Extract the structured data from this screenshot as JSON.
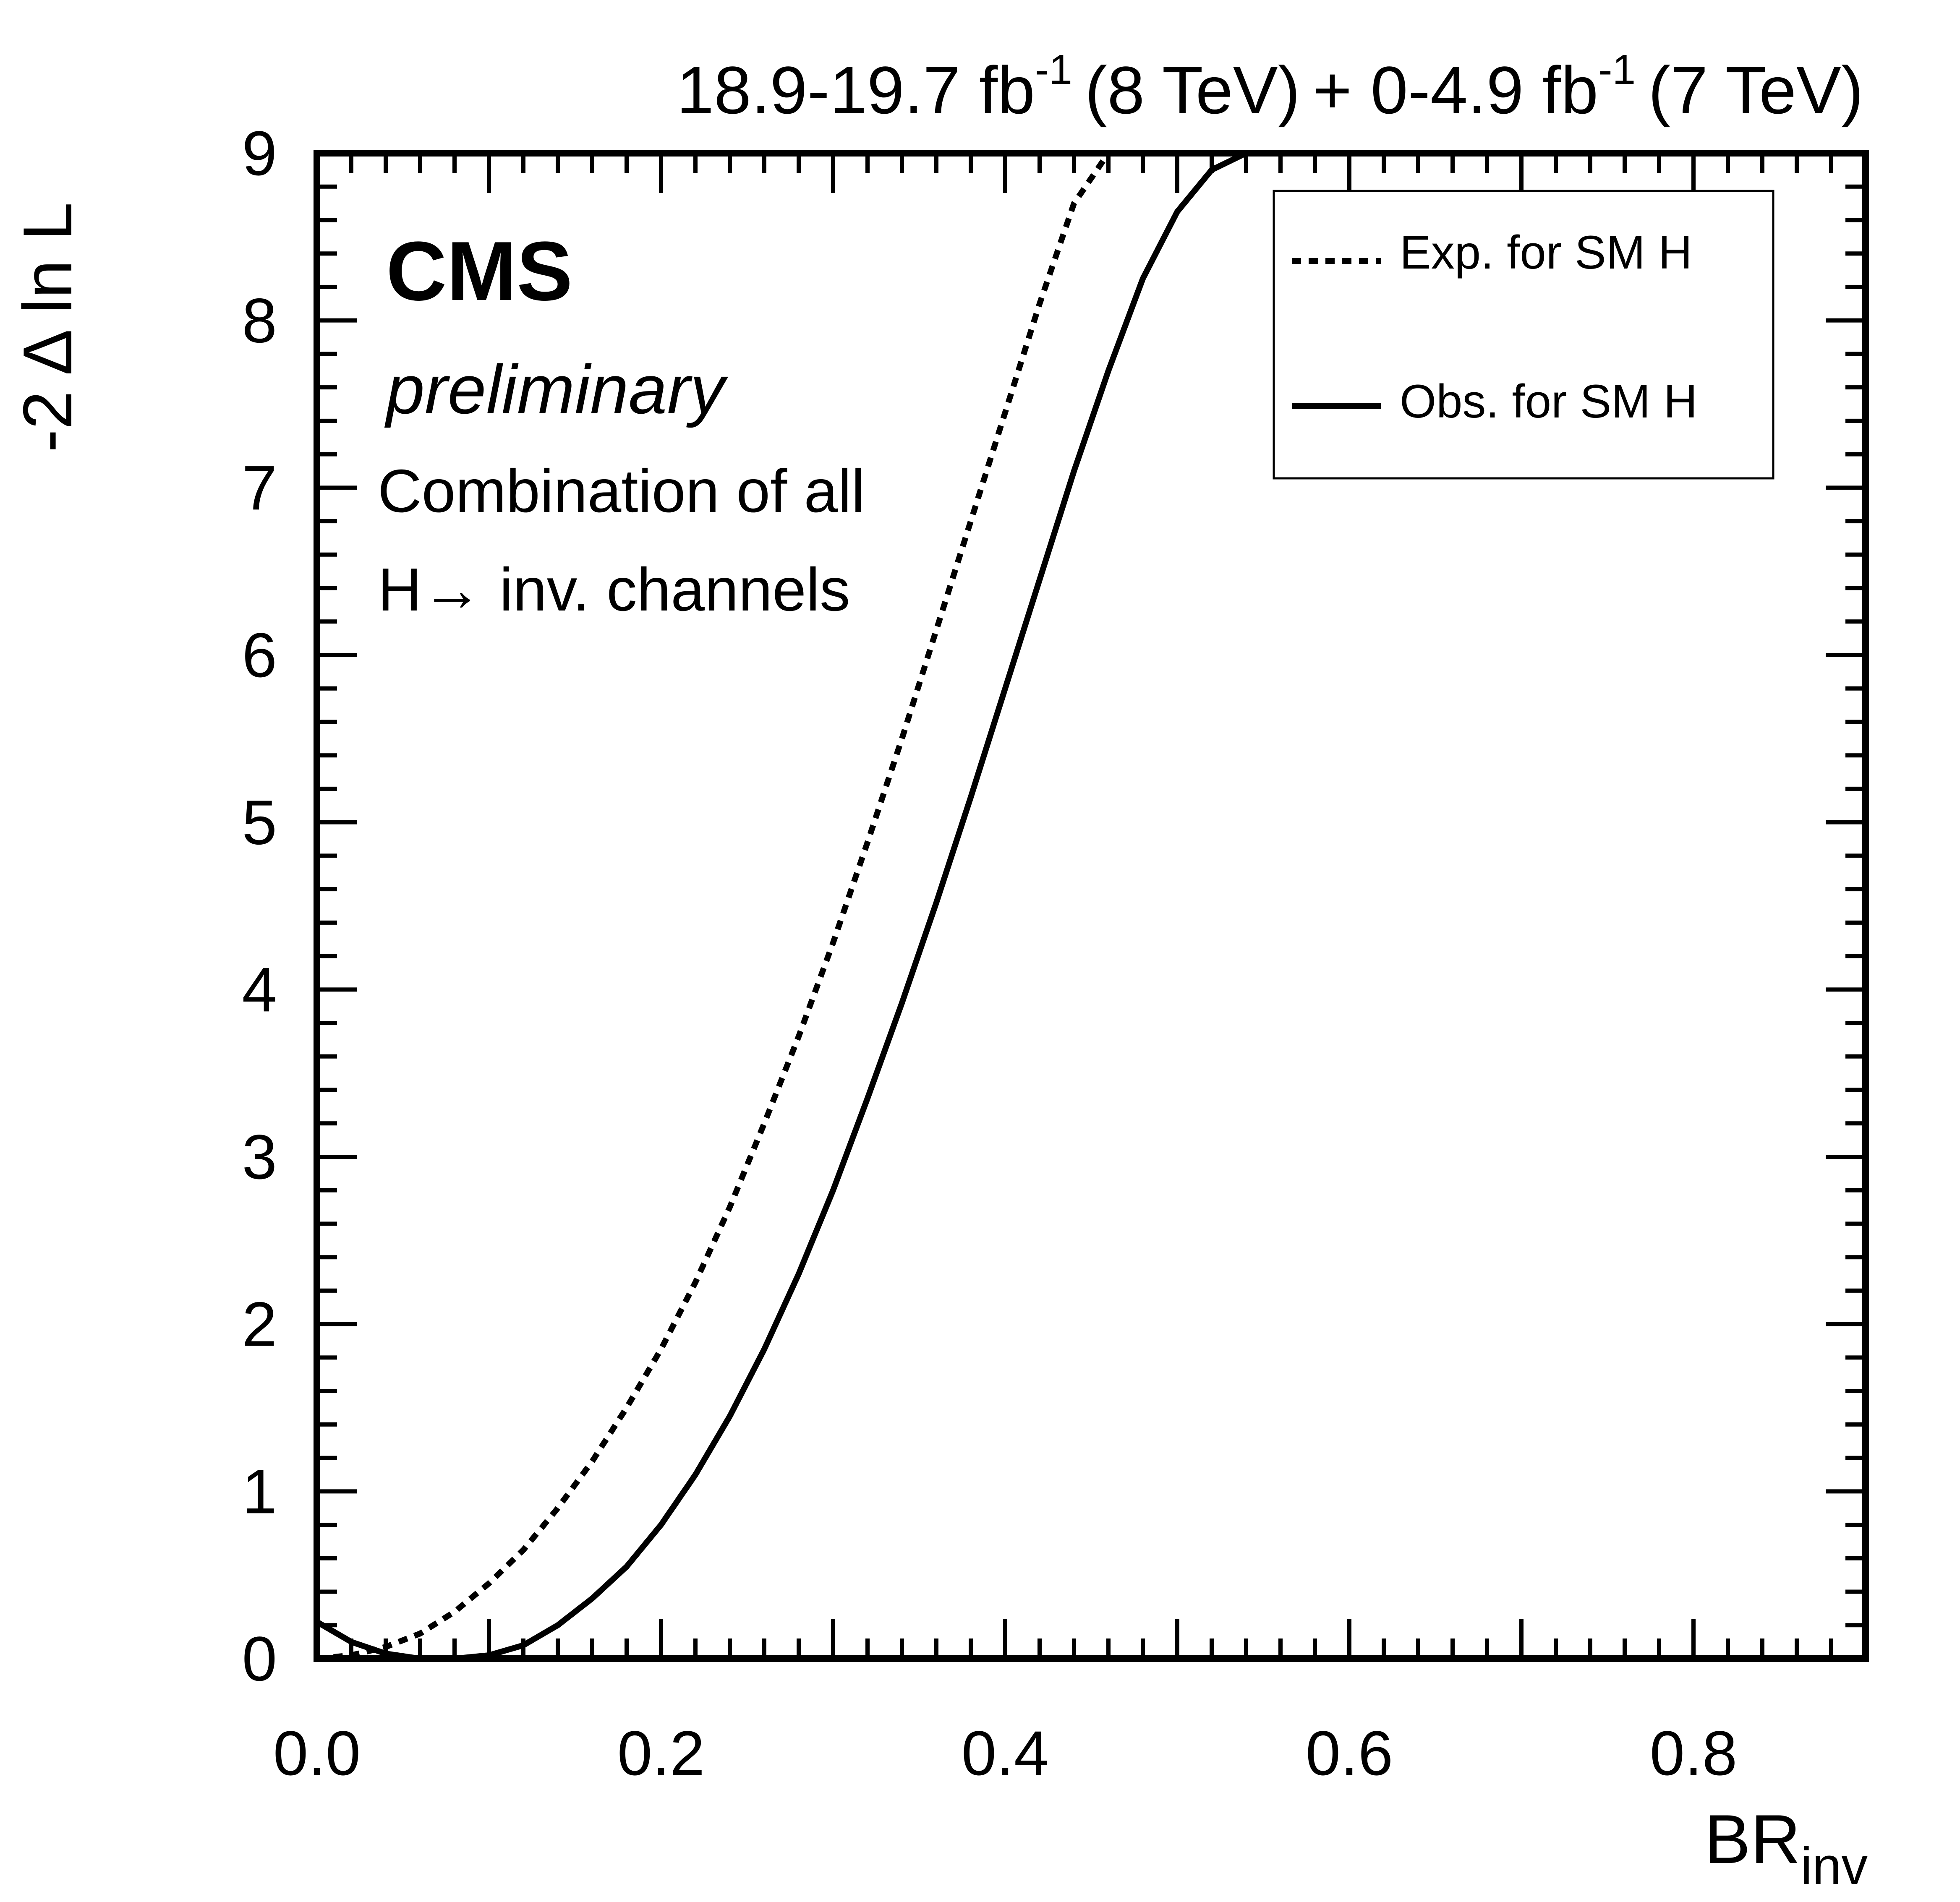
{
  "header": {
    "lumi_8tev": "18.9-19.7 fb",
    "lumi_7tev": "+ 0-4.9 fb",
    "sup": "-1",
    "energy_8": "(8 TeV)",
    "energy_7": "(7 TeV)"
  },
  "labels": {
    "cms": "CMS",
    "preliminary": "preliminary",
    "note_line1": "Combination of all",
    "note_line2": "H→ inv. channels"
  },
  "legend": {
    "placement": "top-right",
    "items": [
      {
        "label": "Exp. for SM H",
        "style": "dotted"
      },
      {
        "label": "Obs. for SM H",
        "style": "solid"
      }
    ]
  },
  "chart_data": {
    "type": "line",
    "xlabel_main": "BR",
    "xlabel_sub": "inv",
    "ylabel": "-2 Δ ln L",
    "xlim": [
      0.0,
      0.9
    ],
    "ylim": [
      0,
      9
    ],
    "xticks": [
      "0.0",
      "0.2",
      "0.4",
      "0.6",
      "0.8"
    ],
    "yticks": [
      "0",
      "1",
      "2",
      "3",
      "4",
      "5",
      "6",
      "7",
      "8",
      "9"
    ],
    "grid": false,
    "series": [
      {
        "name": "Exp. for SM H",
        "style": "dotted",
        "x": [
          0.0,
          0.02,
          0.04,
          0.06,
          0.08,
          0.1,
          0.12,
          0.14,
          0.16,
          0.18,
          0.2,
          0.22,
          0.24,
          0.26,
          0.28,
          0.3,
          0.32,
          0.34,
          0.36,
          0.38,
          0.4,
          0.42,
          0.44,
          0.46
        ],
        "y": [
          0.0,
          0.02,
          0.07,
          0.15,
          0.28,
          0.45,
          0.65,
          0.9,
          1.18,
          1.5,
          1.85,
          2.25,
          2.7,
          3.2,
          3.72,
          4.28,
          4.88,
          5.5,
          6.15,
          6.8,
          7.45,
          8.1,
          8.7,
          9.0
        ]
      },
      {
        "name": "Obs. for SM H",
        "style": "solid",
        "x": [
          0.0,
          0.02,
          0.04,
          0.06,
          0.08,
          0.1,
          0.12,
          0.14,
          0.16,
          0.18,
          0.2,
          0.22,
          0.24,
          0.26,
          0.28,
          0.3,
          0.32,
          0.34,
          0.36,
          0.38,
          0.4,
          0.42,
          0.44,
          0.46,
          0.48,
          0.5,
          0.52,
          0.54
        ],
        "y": [
          0.22,
          0.1,
          0.03,
          0.0,
          0.0,
          0.02,
          0.08,
          0.2,
          0.36,
          0.55,
          0.8,
          1.1,
          1.45,
          1.85,
          2.3,
          2.8,
          3.35,
          3.92,
          4.52,
          5.15,
          5.8,
          6.45,
          7.1,
          7.7,
          8.25,
          8.65,
          8.9,
          9.0
        ]
      }
    ]
  }
}
